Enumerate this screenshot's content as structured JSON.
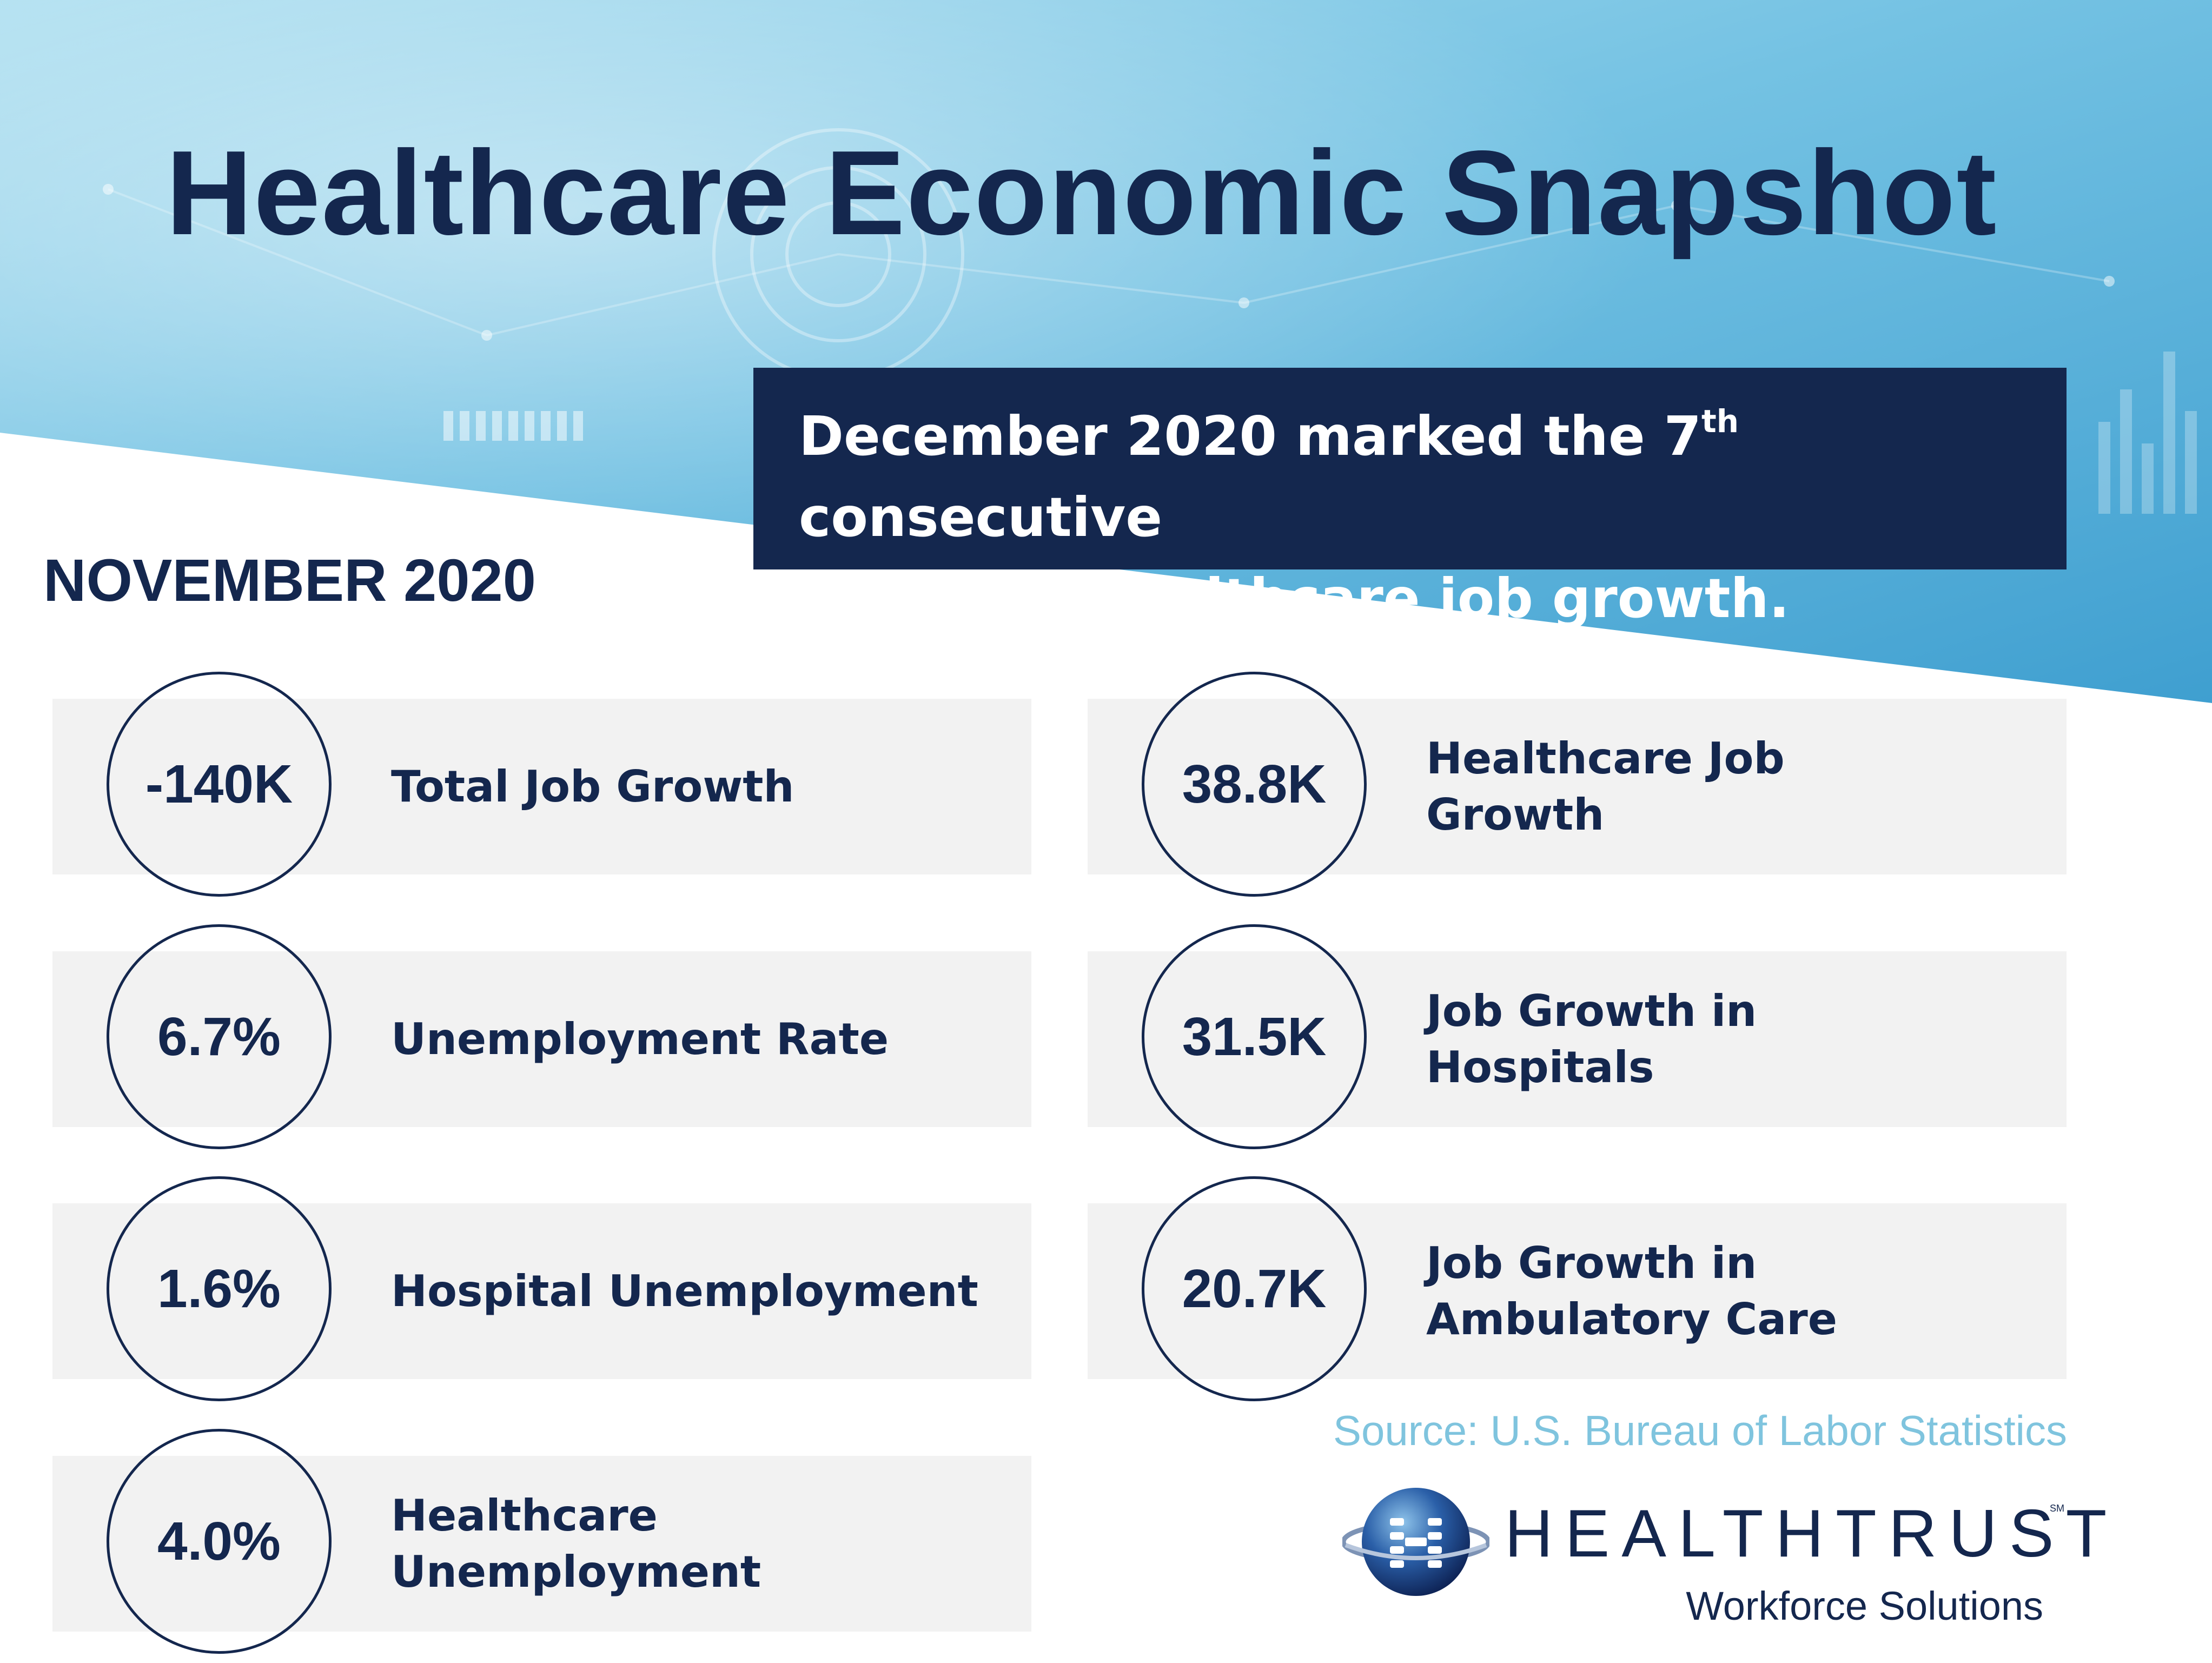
{
  "title": "Healthcare Economic Snapshot",
  "callout": {
    "line1_pre": "December 2020 marked the 7",
    "line1_sup": "th",
    "line1_post": " consecutive",
    "line2": "month of healthcare job growth."
  },
  "period": "NOVEMBER 2020",
  "stats_left": [
    {
      "value": "-140K",
      "label": "Total Job Growth"
    },
    {
      "value": "6.7%",
      "label": "Unemployment Rate"
    },
    {
      "value": "1.6%",
      "label": "Hospital Unemployment"
    },
    {
      "value": "4.0%",
      "label": "Healthcare Unemployment"
    }
  ],
  "stats_right": [
    {
      "value": "38.8K",
      "label": "Healthcare Job Growth"
    },
    {
      "value": "31.5K",
      "label": "Job Growth in Hospitals"
    },
    {
      "value": "20.7K",
      "label": "Job Growth in Ambulatory Care"
    }
  ],
  "source": "Source: U.S. Bureau of Labor Statistics",
  "logo": {
    "icon": "healthtrust-globe-icon",
    "brand": "HEALTHTRUST",
    "mark": "SM",
    "tagline": "Workforce Solutions"
  },
  "colors": {
    "navy": "#14274e",
    "sky": "#5cb3da",
    "card": "#f2f2f2",
    "source": "#7fc4de"
  }
}
